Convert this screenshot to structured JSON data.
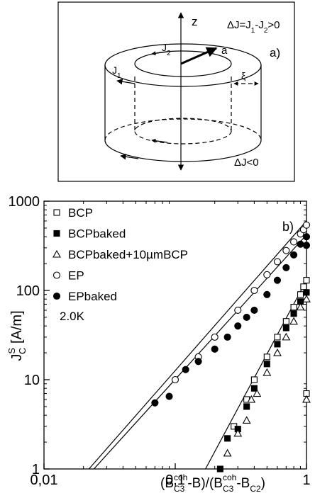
{
  "diagram": {
    "axis_label": "z",
    "delta_pos": [
      "ΔJ=J",
      "1",
      "-J",
      "2",
      ">0"
    ],
    "j2": [
      "J",
      "2"
    ],
    "j1": [
      "J",
      "1"
    ],
    "a_label": "a",
    "xi_label": "ξ",
    "panel_label": "a)",
    "delta_neg": "ΔJ<0"
  },
  "chart_data": {
    "type": "scatter",
    "panel_label": "b)",
    "annotation": "2.0K",
    "y_label": [
      "J",
      "S",
      "C",
      " [A/m]"
    ],
    "x_label": [
      "(B",
      "C3",
      "coh",
      "-B)/(B",
      "C3",
      "coh",
      "-B",
      "C2",
      ")"
    ],
    "log_x": true,
    "log_y": true,
    "xlim": [
      0.01,
      1
    ],
    "ylim": [
      1,
      1000
    ],
    "xticks": [
      {
        "value": 0.01,
        "label": "0,01"
      },
      {
        "value": 0.1,
        "label": "0,1"
      },
      {
        "value": 1,
        "label": "1"
      }
    ],
    "yticks": [
      1,
      10,
      100,
      1000
    ],
    "series": [
      {
        "name": "BCP",
        "color": "#000000",
        "marker": "square",
        "filled": false,
        "x": [
          0.28,
          0.35,
          0.4,
          0.5,
          0.6,
          0.7,
          0.8,
          0.9,
          0.95,
          1.0,
          1.0
        ],
        "values": [
          3,
          6,
          10,
          18,
          30,
          45,
          65,
          90,
          110,
          130,
          7
        ]
      },
      {
        "name": "BCPbaked",
        "color": "#000000",
        "marker": "square",
        "filled": true,
        "x": [
          0.22,
          0.25,
          0.3,
          0.35,
          0.4,
          0.5,
          0.6,
          0.7,
          0.8,
          0.9,
          1.0
        ],
        "values": [
          1,
          2.2,
          2.8,
          5,
          8,
          15,
          25,
          38,
          55,
          75,
          95
        ]
      },
      {
        "name": "BCPbaked+10µmBCP",
        "color": "#000000",
        "marker": "triangle",
        "filled": false,
        "x": [
          0.25,
          0.3,
          0.35,
          0.38,
          0.42,
          0.5,
          0.6,
          0.7,
          0.8,
          0.9,
          1.0,
          1.0
        ],
        "values": [
          1.5,
          2.5,
          3.5,
          6,
          7,
          12,
          20,
          30,
          45,
          65,
          80,
          6
        ]
      },
      {
        "name": "EP",
        "color": "#000000",
        "marker": "circle",
        "filled": false,
        "x": [
          0.1,
          0.15,
          0.2,
          0.3,
          0.4,
          0.5,
          0.6,
          0.7,
          0.8,
          0.9,
          0.95,
          1.0
        ],
        "values": [
          10,
          18,
          30,
          60,
          100,
          150,
          210,
          280,
          350,
          430,
          480,
          540
        ]
      },
      {
        "name": "EPbaked",
        "color": "#000000",
        "marker": "circle",
        "filled": true,
        "x": [
          0.07,
          0.09,
          0.12,
          0.15,
          0.2,
          0.25,
          0.3,
          0.35,
          0.4,
          0.5,
          0.6,
          0.7,
          0.8,
          0.9,
          1.0,
          1.0
        ],
        "values": [
          5.5,
          6.5,
          13,
          16,
          22,
          30,
          40,
          50,
          60,
          90,
          130,
          180,
          250,
          330,
          400,
          320
        ]
      }
    ],
    "fit_lines": [
      {
        "x": [
          0.022,
          1
        ],
        "values": [
          1,
          600
        ]
      },
      {
        "x": [
          0.024,
          1
        ],
        "values": [
          1,
          420
        ]
      },
      {
        "x": [
          0.17,
          1
        ],
        "values": [
          1,
          130
        ]
      }
    ]
  }
}
